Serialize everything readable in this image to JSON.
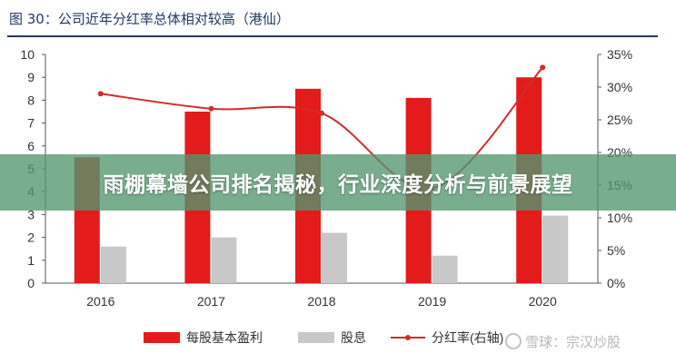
{
  "figure": {
    "title": "图 30：公司近年分红率总体相对较高（港仙）"
  },
  "chart_data": {
    "type": "bar",
    "categories": [
      "2016",
      "2017",
      "2018",
      "2019",
      "2020"
    ],
    "series": [
      {
        "name": "每股基本盈利",
        "type": "bar",
        "axis": "left",
        "color": "#e31b1b",
        "values": [
          5.5,
          7.5,
          8.5,
          8.1,
          9.0
        ]
      },
      {
        "name": "股息",
        "type": "bar",
        "axis": "left",
        "color": "#c8c8c8",
        "values": [
          1.6,
          2.0,
          2.2,
          1.2,
          2.95
        ]
      },
      {
        "name": "分红率(右轴)",
        "type": "line",
        "axis": "right",
        "color": "#d42a2a",
        "values": [
          29.0,
          26.7,
          26.0,
          14.5,
          33.0
        ]
      }
    ],
    "y_left": {
      "min": 0,
      "max": 10,
      "ticks": [
        "0",
        "1",
        "2",
        "3",
        "4",
        "5",
        "6",
        "7",
        "8",
        "9",
        "10"
      ]
    },
    "y_right": {
      "min": 0,
      "max": 35,
      "ticks": [
        "0%",
        "5%",
        "10%",
        "15%",
        "20%",
        "25%",
        "30%",
        "35%"
      ]
    },
    "grid": false,
    "legend_position": "bottom"
  },
  "banner": {
    "text": "雨棚幕墙公司排名揭秘，行业深度分析与前景展望"
  },
  "watermark": {
    "text": "雪球：宗汉炒股"
  }
}
